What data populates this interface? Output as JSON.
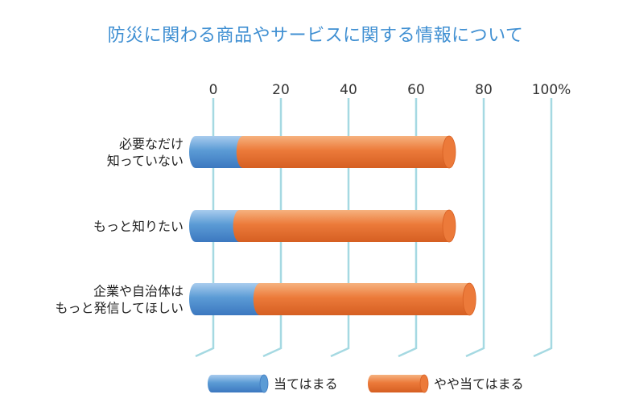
{
  "chart_data": {
    "type": "bar",
    "stacked": true,
    "orientation": "horizontal",
    "style": "3d-cylinder",
    "title": "防災に関わる商品やサービスに関する情報について",
    "categories": [
      [
        "必要なだけ",
        "知っていない"
      ],
      [
        "もっと知りたい"
      ],
      [
        "企業や自治体は",
        "もっと発信してほしい"
      ]
    ],
    "x_ticks": [
      "0",
      "20",
      "40",
      "60",
      "80",
      "100%"
    ],
    "xlim": [
      0,
      100
    ],
    "grid": true,
    "legend_position": "bottom",
    "series": [
      {
        "name": "当てはまる",
        "values": [
          14,
          13,
          19
        ],
        "color": "#5b9bd5",
        "color_dark": "#3c78c0",
        "color_light": "#a9ccee"
      },
      {
        "name": "やや当てはまる",
        "values": [
          61,
          62,
          62
        ],
        "color": "#ec7a3a",
        "color_dark": "#d65f22",
        "color_light": "#f6b27f"
      }
    ],
    "colors": {
      "grid": "#a5d9e2",
      "title": "#3f8fd2"
    }
  }
}
